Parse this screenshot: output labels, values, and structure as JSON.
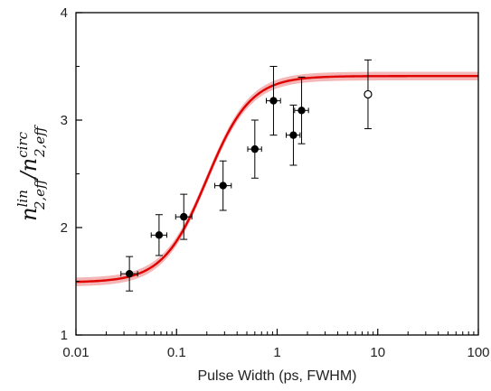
{
  "chart_data": {
    "type": "scatter",
    "title": "",
    "xlabel": "Pulse Width (ps, FWHM)",
    "ylabel": {
      "base": "n",
      "top_sub": "2,eff",
      "top_sup": "lin",
      "slash": "/",
      "bot_sub": "2,eff",
      "bot_sup": "circ"
    },
    "x_scale": "log",
    "xlim": [
      0.01,
      100
    ],
    "ylim": [
      1,
      4
    ],
    "x_ticks": [
      0.01,
      0.1,
      1,
      10,
      100
    ],
    "x_tick_labels": [
      "0.01",
      "0.1",
      "1",
      "10",
      "100"
    ],
    "y_ticks": [
      1,
      2,
      3,
      4
    ],
    "y_tick_labels": [
      "1",
      "2",
      "3",
      "4"
    ],
    "grid": false,
    "legend": "none",
    "series": [
      {
        "marker": "filled-circle",
        "color": "#000000",
        "points": [
          {
            "x": 0.034,
            "y": 1.57,
            "y_err": 0.16,
            "x_err_lo": 0.006,
            "x_err_hi": 0.007
          },
          {
            "x": 0.067,
            "y": 1.93,
            "y_err": 0.19,
            "x_err_lo": 0.011,
            "x_err_hi": 0.013
          },
          {
            "x": 0.118,
            "y": 2.1,
            "y_err": 0.21,
            "x_err_lo": 0.02,
            "x_err_hi": 0.024
          },
          {
            "x": 0.29,
            "y": 2.39,
            "y_err": 0.23,
            "x_err_lo": 0.05,
            "x_err_hi": 0.06
          },
          {
            "x": 0.6,
            "y": 2.73,
            "y_err": 0.27,
            "x_err_lo": 0.09,
            "x_err_hi": 0.1
          },
          {
            "x": 0.92,
            "y": 3.18,
            "y_err": 0.32,
            "x_err_lo": 0.14,
            "x_err_hi": 0.16
          },
          {
            "x": 1.45,
            "y": 2.86,
            "y_err": 0.28,
            "x_err_lo": 0.22,
            "x_err_hi": 0.24
          },
          {
            "x": 1.75,
            "y": 3.09,
            "y_err": 0.31,
            "x_err_lo": 0.26,
            "x_err_hi": 0.3
          }
        ]
      },
      {
        "marker": "open-circle",
        "color": "#000000",
        "points": [
          {
            "x": 8.0,
            "y": 3.24,
            "y_err": 0.32
          }
        ]
      }
    ],
    "fit_curve": {
      "type": "sigmoid-log",
      "color": "#e00000",
      "band_color": "#f4b6b6",
      "y_min": 1.49,
      "y_max": 3.41,
      "x_mid": 0.2,
      "steepness": 2.0,
      "band_halfwidth": 0.04
    }
  }
}
